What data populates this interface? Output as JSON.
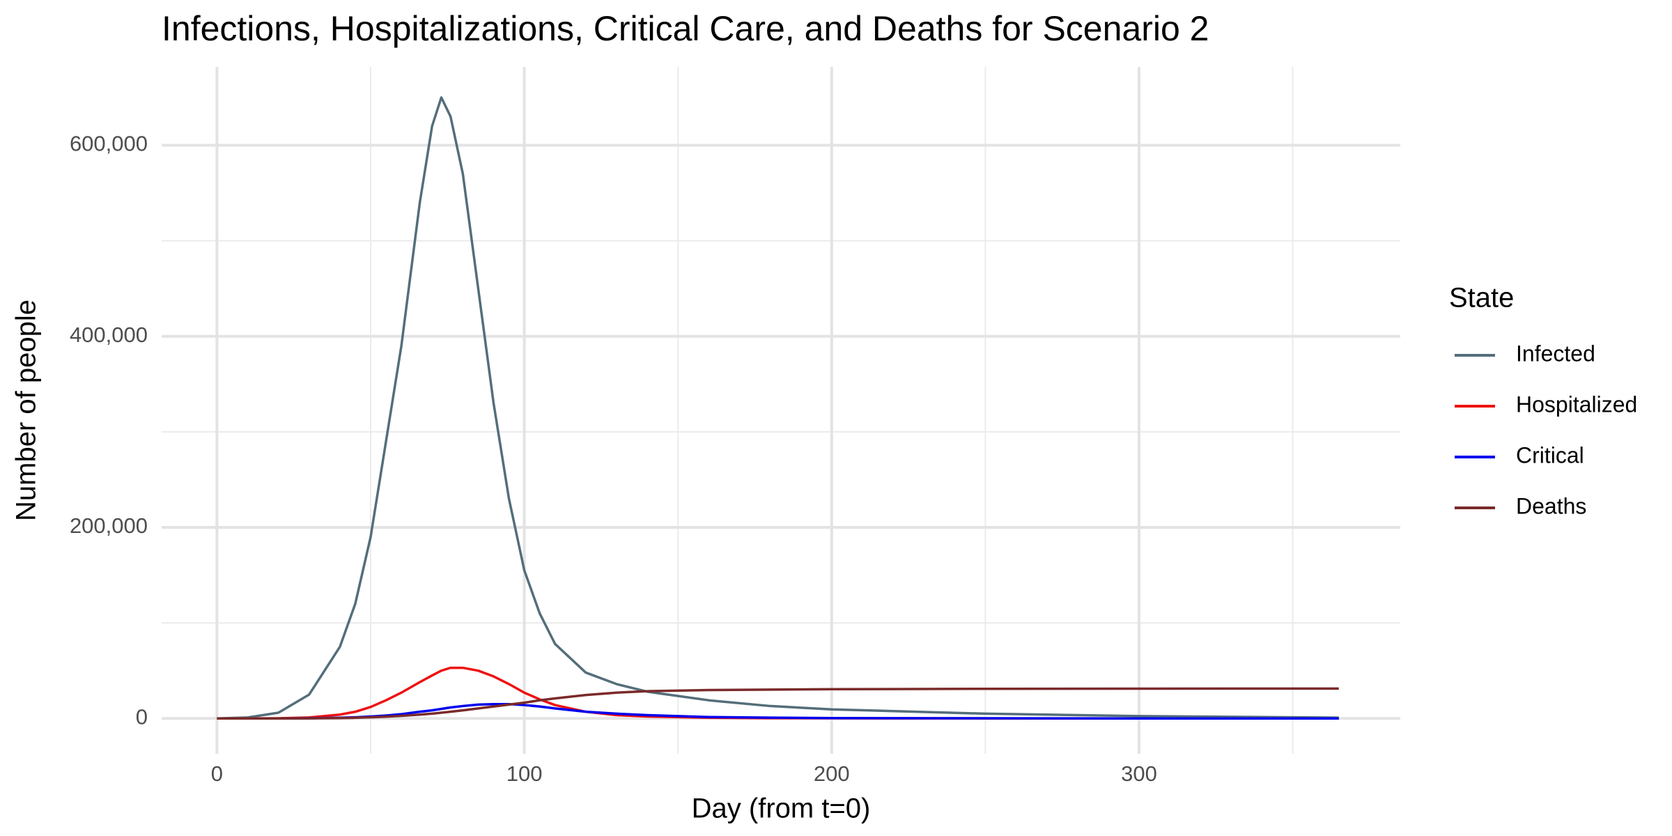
{
  "chart_data": {
    "type": "line",
    "title": "Infections, Hospitalizations, Critical Care, and Deaths for Scenario 2",
    "x_label": "Day (from t=0)",
    "y_label": "Number of people",
    "legend_title": "State",
    "legend_position": "right",
    "grid": true,
    "x": [
      0,
      10,
      20,
      30,
      40,
      45,
      50,
      55,
      60,
      66,
      70,
      73,
      76,
      80,
      85,
      90,
      95,
      100,
      105,
      110,
      120,
      130,
      140,
      160,
      180,
      200,
      250,
      300,
      365
    ],
    "series": [
      {
        "name": "Infected",
        "color": "#546e7a",
        "values": [
          0,
          1000,
          6000,
          25000,
          75000,
          120000,
          190000,
          290000,
          390000,
          540000,
          620000,
          650000,
          630000,
          570000,
          450000,
          330000,
          230000,
          155000,
          110000,
          78000,
          48000,
          36000,
          28000,
          19000,
          13000,
          9500,
          5000,
          2500,
          800
        ]
      },
      {
        "name": "Hospitalized",
        "color": "#ee1111",
        "values": [
          0,
          0,
          200,
          1000,
          4000,
          7000,
          12000,
          19000,
          27000,
          38000,
          45000,
          50000,
          53000,
          53000,
          50000,
          44000,
          36000,
          27000,
          20000,
          14000,
          7000,
          3500,
          2000,
          700,
          300,
          150,
          50,
          20,
          5
        ]
      },
      {
        "name": "Critical",
        "color": "#0000ee",
        "values": [
          0,
          0,
          0,
          200,
          700,
          1200,
          2000,
          3000,
          4500,
          7000,
          8500,
          10000,
          11500,
          13000,
          14500,
          15000,
          15000,
          14000,
          12500,
          10500,
          7000,
          5000,
          3500,
          1500,
          800,
          400,
          150,
          50,
          20
        ]
      },
      {
        "name": "Deaths",
        "color": "#7b2a2a",
        "values": [
          0,
          0,
          0,
          100,
          400,
          700,
          1200,
          1800,
          2700,
          4000,
          5000,
          6000,
          7000,
          8500,
          10500,
          12500,
          14500,
          16500,
          19000,
          21000,
          24500,
          27000,
          28500,
          29700,
          30200,
          30600,
          31000,
          31200,
          31300
        ]
      }
    ],
    "xlim": [
      -18,
      385
    ],
    "ylim": [
      -37000,
      682000
    ],
    "xticks": [
      0,
      100,
      200,
      300
    ],
    "yticks": [
      0,
      {
        "value": 200000,
        "label": "200,000"
      },
      {
        "value": 400000,
        "label": "400,000"
      },
      {
        "value": 600000,
        "label": "600,000"
      }
    ],
    "x_minor_grid": [
      50,
      150,
      250,
      350
    ],
    "y_minor_grid": [
      100000,
      300000,
      500000
    ]
  }
}
